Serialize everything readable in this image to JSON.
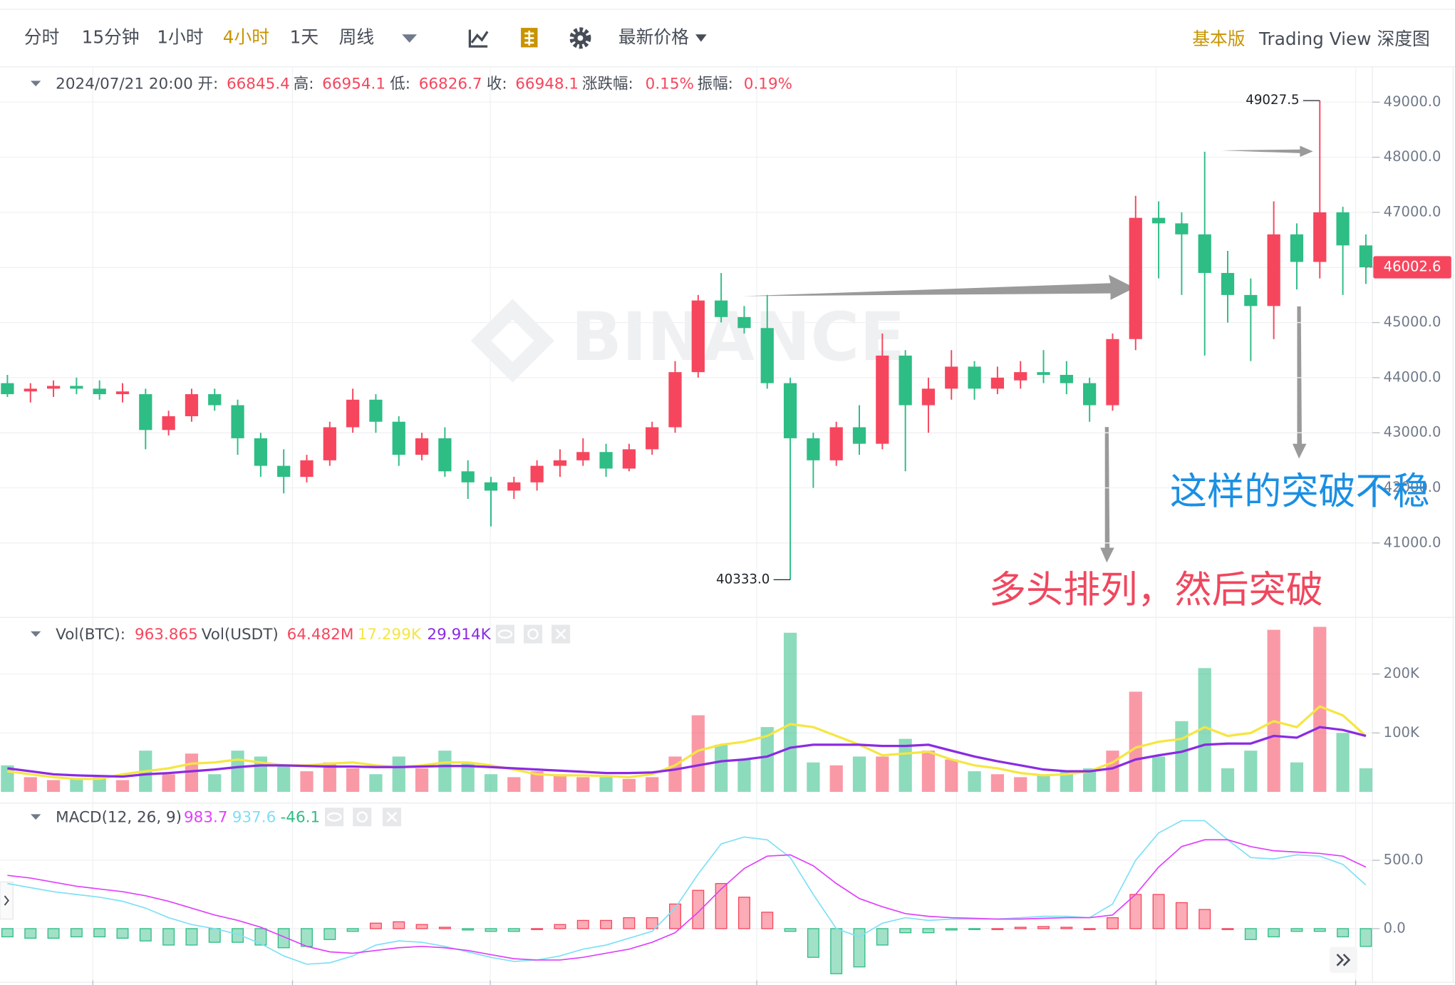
{
  "toolbar": {
    "tabs": [
      {
        "label": "分时",
        "active": false
      },
      {
        "label": "15分钟",
        "active": false
      },
      {
        "label": "1小时",
        "active": false
      },
      {
        "label": "4小时",
        "active": true
      },
      {
        "label": "1天",
        "active": false
      },
      {
        "label": "周线",
        "active": false
      }
    ],
    "price_menu": "最新价格",
    "views": [
      {
        "label": "基本版",
        "active": true
      },
      {
        "label": "Trading View",
        "active": false
      },
      {
        "label": "深度图",
        "active": false
      }
    ],
    "active_color": "#c99400"
  },
  "chart_data": [
    {
      "type": "candlestick",
      "info": [
        {
          "label": "2024/07/21 20:00"
        },
        {
          "label": "开:",
          "value": "66845.4"
        },
        {
          "label": "高:",
          "value": "66954.1"
        },
        {
          "label": "低:",
          "value": "66826.7"
        },
        {
          "label": "收:",
          "value": "66948.1"
        },
        {
          "label": "涨跌幅:",
          "value": "0.15%"
        },
        {
          "label": "振幅:",
          "value": "0.19%"
        }
      ],
      "up_color": "#f6465d",
      "down_color": "#2ebd85",
      "open": [
        43900,
        43750,
        43800,
        43850,
        43800,
        43700,
        43700,
        43050,
        43300,
        43700,
        43500,
        42900,
        42400,
        42200,
        42500,
        43100,
        43600,
        43200,
        42600,
        42900,
        42300,
        42100,
        41950,
        42100,
        42400,
        42500,
        42650,
        42350,
        42700,
        43100,
        44100,
        45400,
        45100,
        44900,
        43900,
        42900,
        42500,
        43100,
        42800,
        44400,
        43500,
        43800,
        44200,
        43800,
        43950,
        44100,
        44050,
        43900,
        43500,
        44700,
        46900,
        46800,
        46600,
        45900,
        45500,
        45300,
        46600,
        46100,
        47000,
        46400
      ],
      "high": [
        44050,
        43900,
        43950,
        44000,
        43950,
        43900,
        43800,
        43400,
        43800,
        43800,
        43600,
        43000,
        42700,
        42600,
        43200,
        43800,
        43700,
        43300,
        43000,
        43100,
        42500,
        42200,
        42200,
        42500,
        42700,
        42900,
        42800,
        42800,
        43200,
        44300,
        45500,
        45900,
        45300,
        45500,
        44000,
        43000,
        43200,
        43500,
        44800,
        44500,
        44000,
        44500,
        44300,
        44200,
        44300,
        44500,
        44300,
        44000,
        44800,
        47300,
        47200,
        47000,
        48100,
        46300,
        45800,
        47200,
        46800,
        49027.5,
        47100,
        46600
      ],
      "low": [
        43650,
        43550,
        43650,
        43700,
        43600,
        43550,
        42700,
        42950,
        43200,
        43400,
        42600,
        42200,
        41900,
        42100,
        42400,
        43000,
        43000,
        42400,
        42500,
        42200,
        41800,
        41300,
        41800,
        41950,
        42200,
        42400,
        42200,
        42300,
        42600,
        43000,
        44000,
        45000,
        44800,
        43800,
        40333,
        42000,
        42400,
        42600,
        42700,
        42300,
        43000,
        43600,
        43600,
        43700,
        43800,
        43900,
        43700,
        43200,
        43400,
        44500,
        45800,
        45500,
        44400,
        45000,
        44300,
        44700,
        45600,
        45800,
        45500,
        45700
      ],
      "close": [
        43700,
        43800,
        43850,
        43800,
        43700,
        43750,
        43050,
        43300,
        43700,
        43500,
        42900,
        42400,
        42200,
        42500,
        43100,
        43600,
        43200,
        42600,
        42900,
        42300,
        42100,
        41950,
        42100,
        42400,
        42500,
        42650,
        42350,
        42700,
        43100,
        44100,
        45400,
        45100,
        44900,
        43900,
        42900,
        42500,
        43100,
        42800,
        44400,
        43500,
        43800,
        44200,
        43800,
        44000,
        44100,
        44050,
        43900,
        43500,
        44700,
        46900,
        46800,
        46600,
        45900,
        45500,
        45300,
        46600,
        46100,
        47000,
        46400,
        46002.6
      ],
      "ylim": [
        39650,
        49640
      ],
      "yticks": [
        {
          "value": 41000,
          "label": "41000.0"
        },
        {
          "value": 42000,
          "label": "42000.0"
        },
        {
          "value": 43000,
          "label": "43000.0"
        },
        {
          "value": 44000,
          "label": "44000.0"
        },
        {
          "value": 45000,
          "label": "45000.0"
        },
        {
          "value": 46000,
          "label": "46000.0"
        },
        {
          "value": 47000,
          "label": "47000.0"
        },
        {
          "value": 48000,
          "label": "48000.0"
        },
        {
          "value": 49000,
          "label": "49000.0"
        }
      ],
      "max_label": "49027.5",
      "min_label": "40333.0",
      "watermark": "BINANCE",
      "annotations": [
        {
          "text": "多头排列，然后突破",
          "color": "#f0475e"
        },
        {
          "text": "这样的突破不稳",
          "color": "#1a8fe3"
        }
      ]
    },
    {
      "type": "bar",
      "legend": [
        {
          "label": "Vol(BTC):",
          "value": "963.865"
        },
        {
          "label": "Vol(USDT)",
          "value": "64.482M"
        }
      ],
      "values": [
        45000,
        25000,
        20000,
        22000,
        25000,
        20000,
        70000,
        30000,
        65000,
        30000,
        70000,
        60000,
        45000,
        35000,
        50000,
        40000,
        30000,
        60000,
        40000,
        70000,
        50000,
        30000,
        25000,
        35000,
        30000,
        25000,
        25000,
        22000,
        25000,
        60000,
        130000,
        80000,
        55000,
        110000,
        270000,
        50000,
        45000,
        60000,
        60000,
        90000,
        70000,
        55000,
        35000,
        30000,
        25000,
        30000,
        35000,
        40000,
        70000,
        170000,
        60000,
        120000,
        210000,
        40000,
        70000,
        275000,
        50000,
        280000,
        100000,
        40000
      ],
      "lines": [
        {
          "color": "#f5e642",
          "legend_value": "17.299K",
          "values": [
            35000,
            30000,
            25000,
            22000,
            22000,
            30000,
            35000,
            40000,
            48000,
            50000,
            55000,
            50000,
            45000,
            45000,
            48000,
            50000,
            45000,
            42000,
            45000,
            50000,
            50000,
            45000,
            38000,
            30000,
            28000,
            28000,
            27000,
            25000,
            30000,
            45000,
            70000,
            80000,
            85000,
            95000,
            115000,
            110000,
            95000,
            80000,
            62000,
            65000,
            68000,
            55000,
            45000,
            40000,
            32000,
            28000,
            30000,
            35000,
            50000,
            75000,
            85000,
            90000,
            110000,
            95000,
            100000,
            120000,
            110000,
            145000,
            130000,
            95000
          ]
        },
        {
          "color": "#8a2be2",
          "legend_value": "29.914K",
          "values": [
            40000,
            35000,
            30000,
            28000,
            27000,
            26000,
            30000,
            32000,
            35000,
            38000,
            42000,
            45000,
            45000,
            44000,
            43000,
            43000,
            42000,
            42000,
            43000,
            44000,
            44000,
            42000,
            40000,
            38000,
            36000,
            34000,
            32000,
            32000,
            33000,
            38000,
            45000,
            52000,
            55000,
            60000,
            75000,
            80000,
            80000,
            80000,
            78000,
            78000,
            80000,
            70000,
            60000,
            52000,
            45000,
            38000,
            35000,
            35000,
            40000,
            55000,
            62000,
            68000,
            80000,
            82000,
            82000,
            95000,
            92000,
            110000,
            105000,
            95000
          ]
        }
      ],
      "ylim": [
        0,
        294500
      ],
      "yticks": [
        {
          "value": 100000,
          "label": "100K"
        },
        {
          "value": 200000,
          "label": "200K"
        }
      ]
    },
    {
      "type": "macd",
      "title": "MACD(12, 26, 9)",
      "series": [
        {
          "color": "#7fe0f5",
          "legend_value": "937.6",
          "values": [
            330,
            300,
            270,
            250,
            230,
            200,
            150,
            80,
            30,
            0,
            -40,
            -110,
            -200,
            -260,
            -250,
            -200,
            -120,
            -90,
            -100,
            -130,
            -170,
            -210,
            -240,
            -230,
            -200,
            -150,
            -120,
            -70,
            -20,
            150,
            400,
            620,
            670,
            650,
            520,
            250,
            0,
            -60,
            40,
            80,
            60,
            70,
            70,
            70,
            80,
            90,
            90,
            80,
            180,
            500,
            700,
            790,
            790,
            650,
            520,
            510,
            540,
            530,
            470,
            320
          ]
        },
        {
          "color": "#e040fb",
          "legend_value": "983.7",
          "values": [
            390,
            370,
            340,
            310,
            290,
            270,
            240,
            200,
            150,
            100,
            60,
            10,
            -60,
            -130,
            -170,
            -180,
            -160,
            -140,
            -130,
            -140,
            -160,
            -190,
            -220,
            -230,
            -230,
            -210,
            -180,
            -150,
            -100,
            -30,
            120,
            290,
            440,
            530,
            540,
            460,
            330,
            220,
            160,
            110,
            90,
            80,
            75,
            70,
            70,
            75,
            80,
            80,
            100,
            250,
            450,
            600,
            650,
            650,
            600,
            570,
            560,
            550,
            530,
            450
          ]
        }
      ],
      "histogram": {
        "legend_value": "-46.1",
        "up_color": "#f6465d",
        "down_color": "#2ebd85",
        "values": [
          -60,
          -70,
          -70,
          -60,
          -60,
          -70,
          -90,
          -120,
          -120,
          -100,
          -100,
          -120,
          -140,
          -130,
          -80,
          -20,
          40,
          50,
          30,
          10,
          -10,
          -20,
          -20,
          0,
          30,
          60,
          60,
          80,
          80,
          180,
          280,
          330,
          230,
          120,
          -20,
          -210,
          -330,
          -280,
          -120,
          -30,
          -30,
          -10,
          -5,
          0,
          10,
          15,
          10,
          0,
          80,
          250,
          250,
          190,
          140,
          0,
          -80,
          -60,
          -20,
          -20,
          -60,
          -130
        ]
      },
      "ylim": [
        -392,
        912
      ],
      "yticks": [
        {
          "value": 0,
          "label": "0.0"
        },
        {
          "value": 500,
          "label": "500.0"
        }
      ]
    }
  ]
}
